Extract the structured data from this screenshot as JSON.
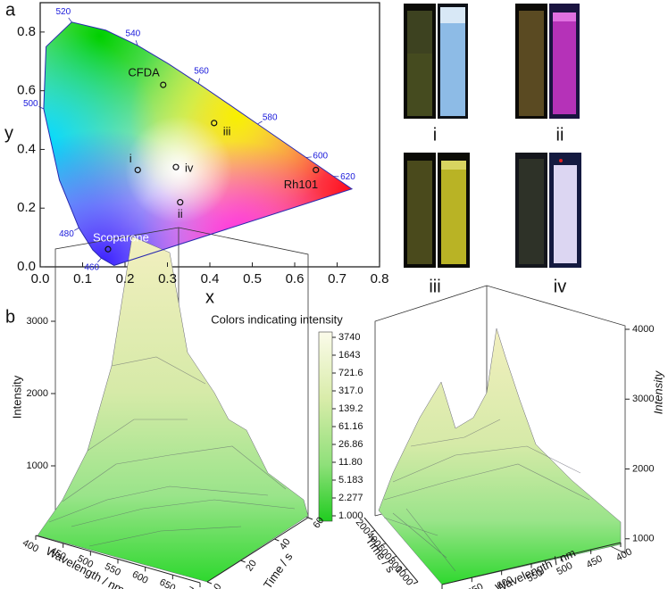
{
  "panel_labels": [
    "a",
    "b"
  ],
  "photos": [
    {
      "label": "i"
    },
    {
      "label": "ii"
    },
    {
      "label": "iii"
    },
    {
      "label": "iv"
    }
  ],
  "chart_data": [
    {
      "type": "scatter",
      "xlabel": "x",
      "ylabel": "y",
      "xlim": [
        0,
        0.8
      ],
      "ylim": [
        0,
        0.9
      ],
      "xticks": [
        {
          "value": 0,
          "label": "0.0"
        },
        0.1,
        0.2,
        0.3,
        0.4,
        0.5,
        0.6,
        0.7,
        0.8
      ],
      "yticks": [
        {
          "value": 0,
          "label": "0.0"
        },
        0.2,
        0.4,
        0.6,
        0.8
      ],
      "locus": {
        "x": [
          0.1741,
          0.144,
          0.1241,
          0.0913,
          0.0454,
          0.0082,
          0.0139,
          0.0743,
          0.1547,
          0.2296,
          0.3016,
          0.3731,
          0.4441,
          0.5125,
          0.5752,
          0.627,
          0.6915,
          0.7347
        ],
        "y": [
          0.005,
          0.0297,
          0.0578,
          0.1327,
          0.295,
          0.5384,
          0.7502,
          0.8338,
          0.8059,
          0.7543,
          0.6923,
          0.6245,
          0.5547,
          0.4866,
          0.4242,
          0.3725,
          0.3083,
          0.2653
        ],
        "labels": [
          null,
          460,
          null,
          480,
          null,
          500,
          null,
          520,
          null,
          540,
          null,
          560,
          null,
          580,
          null,
          600,
          620,
          null
        ],
        "label_color": "#1a1adb"
      },
      "points": {
        "labels": [
          "CFDA",
          "iii",
          "i",
          "iv",
          "ii",
          "Rh101",
          "Scoparone"
        ],
        "x": [
          0.29,
          0.41,
          0.23,
          0.32,
          0.33,
          0.65,
          0.16
        ],
        "y": [
          0.62,
          0.49,
          0.33,
          0.34,
          0.22,
          0.33,
          0.06
        ],
        "label_colors": [
          "#111111",
          "#111111",
          "#111111",
          "#111111",
          "#111111",
          "#111111",
          "#ffffff"
        ]
      }
    },
    {
      "type": "surface3d",
      "colorbar": {
        "title": "Colors indicating intensity",
        "scale": "log",
        "lim": [
          1,
          3740
        ],
        "ticks": [
          3740,
          1643,
          721.6,
          {
            "value": 317,
            "label": "317.0"
          },
          139.2,
          61.16,
          26.86,
          {
            "value": 11.8,
            "label": "11.80"
          },
          5.183,
          2.277,
          {
            "value": 1,
            "label": "1.000"
          }
        ]
      },
      "xlabel": "Wavelength / nm",
      "ylabel": "Time / s",
      "zlabel": "Intensity",
      "xlim": [
        400,
        700
      ],
      "xticks": [
        400,
        450,
        500,
        550,
        600,
        650,
        700
      ],
      "ylim": [
        0,
        60
      ],
      "yticks": [
        0,
        20,
        40,
        60
      ],
      "zlim": [
        0,
        4000
      ],
      "zticks": [
        1000,
        2000,
        3000
      ]
    },
    {
      "type": "surface3d",
      "xlabel": "Time / s",
      "ylabel": "Wavelength / nm",
      "zlabel": "Intensity",
      "xlim": [
        0,
        1000
      ],
      "xticks": [
        200,
        400,
        600,
        800,
        1000
      ],
      "ylim": [
        400,
        700
      ],
      "yticks": [
        400,
        450,
        500,
        550,
        600,
        650,
        700
      ],
      "zlim": [
        0,
        4000
      ],
      "zticks": [
        1000,
        2000,
        3000,
        4000
      ]
    }
  ]
}
